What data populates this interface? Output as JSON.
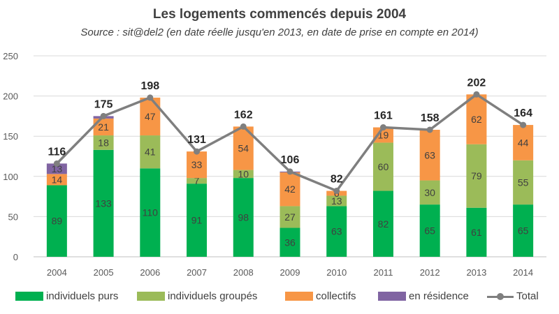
{
  "chart_data": {
    "type": "bar",
    "title": "Les logements commencés depuis 2004",
    "subtitle": "Source : sit@del2 (en date réelle jusqu'en 2013, en date de prise en compte en 2014)",
    "categories": [
      "2004",
      "2005",
      "2006",
      "2007",
      "2008",
      "2009",
      "2010",
      "2011",
      "2012",
      "2013",
      "2014"
    ],
    "ylim": [
      0,
      250
    ],
    "yticks": [
      0,
      50,
      100,
      150,
      200,
      250
    ],
    "grid": true,
    "legend_position": "bottom",
    "series": [
      {
        "name": "individuels purs",
        "color": "#00b050",
        "values": [
          89,
          133,
          110,
          91,
          98,
          36,
          63,
          82,
          65,
          61,
          65
        ]
      },
      {
        "name": "individuels groupés",
        "color": "#9bbb59",
        "values": [
          0,
          18,
          41,
          7,
          10,
          27,
          13,
          60,
          30,
          79,
          55
        ]
      },
      {
        "name": "collectifs",
        "color": "#f79646",
        "values": [
          14,
          21,
          47,
          33,
          54,
          42,
          6,
          19,
          63,
          62,
          44
        ]
      },
      {
        "name": "en résidence",
        "color": "#8064a2",
        "values": [
          13,
          3,
          0,
          0,
          0,
          1,
          0,
          0,
          0,
          0,
          0
        ]
      }
    ],
    "segment_labels": {
      "individuels purs": [
        "89",
        "133",
        "110",
        "91",
        "98",
        "36",
        "63",
        "82",
        "65",
        "61",
        "65"
      ],
      "individuels groupés": [
        "",
        "18",
        "41",
        "7",
        "10",
        "27",
        "13",
        "60",
        "30",
        "79",
        "55"
      ],
      "collectifs": [
        "14",
        "21",
        "47",
        "33",
        "54",
        "42",
        "6",
        "19",
        "63",
        "62",
        "44"
      ],
      "en résidence": [
        "13",
        "",
        "",
        "",
        "",
        "",
        "",
        "",
        "",
        "",
        ""
      ]
    },
    "total": {
      "name": "Total",
      "color": "#7f7f7f",
      "values": [
        116,
        175,
        198,
        131,
        162,
        106,
        82,
        161,
        158,
        202,
        164
      ]
    }
  }
}
